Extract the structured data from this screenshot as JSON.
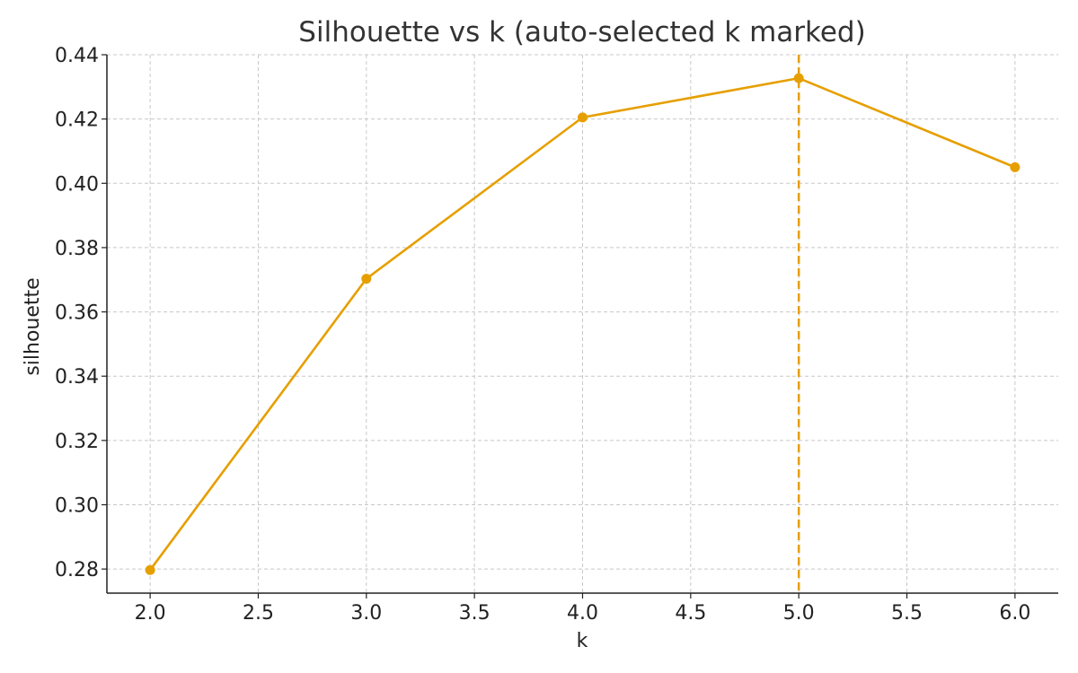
{
  "chart_data": {
    "type": "line",
    "title": "Silhouette vs k (auto-selected k marked)",
    "xlabel": "k",
    "ylabel": "silhouette",
    "x": [
      2,
      3,
      4,
      5,
      6
    ],
    "series": [
      {
        "values": [
          0.2797,
          0.3703,
          0.4205,
          0.4327,
          0.405
        ]
      }
    ],
    "selected_k": 5,
    "xlim": [
      1.8,
      6.2
    ],
    "ylim": [
      0.2725,
      0.44
    ],
    "x_ticks": [
      "2.0",
      "2.5",
      "3.0",
      "3.5",
      "4.0",
      "4.5",
      "5.0",
      "5.5",
      "6.0"
    ],
    "y_ticks": [
      "0.28",
      "0.30",
      "0.32",
      "0.34",
      "0.36",
      "0.38",
      "0.40",
      "0.42",
      "0.44"
    ],
    "grid": true,
    "line_color": "#E69F00",
    "marker_color": "#E69F00"
  }
}
